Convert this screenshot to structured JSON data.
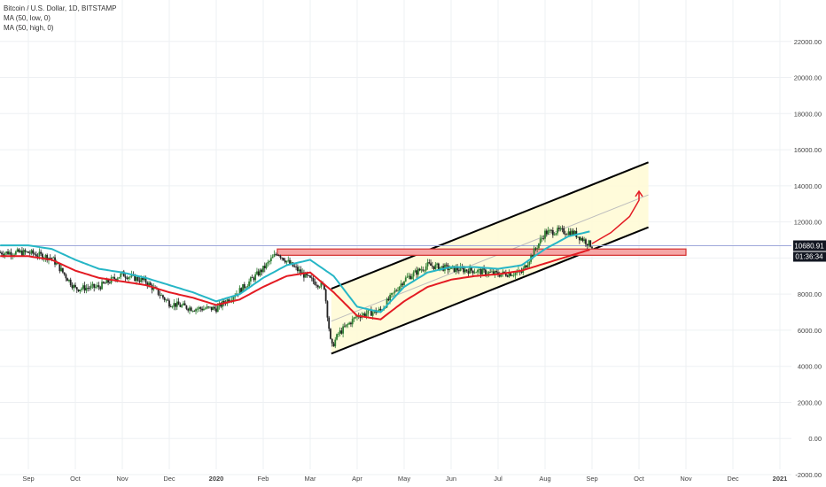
{
  "legend": {
    "symbol": "Bitcoin / U.S. Dollar, 1D, BITSTAMP",
    "ma_low": "MA (50, low, 0)",
    "ma_high": "MA (50, high, 0)"
  },
  "price_tag": {
    "price": "10680.91",
    "countdown": "01:36:34",
    "color": "#26a69a"
  },
  "colors": {
    "ma_low": "#e31b23",
    "ma_high": "#26b6c6",
    "channel_fill": "#fffbd6",
    "channel_line": "#000000",
    "resistance_fill": "#f5a6a6",
    "resistance_border": "#d32f2f",
    "arrow": "#e31b23",
    "up_candle": "#2e7d32",
    "down_candle": "#222222"
  },
  "chart_data": {
    "type": "candlestick",
    "title": "Bitcoin / U.S. Dollar, 1D, BITSTAMP",
    "ylim": [
      -2000,
      24000
    ],
    "yticks": [
      22000,
      20000,
      18000,
      16000,
      14000,
      12000,
      10000,
      8000,
      6000,
      4000,
      2000,
      0,
      -2000
    ],
    "ytick_labels": [
      "22000.00",
      "20000.00",
      "18000.00",
      "16000.00",
      "14000.00",
      "12000.00",
      "10000.00",
      "8000.00",
      "6000.00",
      "4000.00",
      "2000.00",
      "0.00",
      "-2000.00"
    ],
    "x_labels": [
      "Sep",
      "Oct",
      "Nov",
      "Dec",
      "2020",
      "Feb",
      "Mar",
      "Apr",
      "May",
      "Jun",
      "Jul",
      "Aug",
      "Sep",
      "Oct",
      "Nov",
      "Dec",
      "2021"
    ],
    "x_label_months": [
      0,
      1,
      2,
      3,
      4,
      5,
      6,
      7,
      8,
      9,
      10,
      11,
      12,
      13,
      14,
      15,
      16
    ],
    "month_axis_start": "2019-08-17",
    "close_monthly": {
      "months": [
        0,
        0.5,
        1,
        1.5,
        2,
        2.5,
        3,
        3.5,
        4,
        4.5,
        5,
        5.3,
        5.6,
        6,
        6.3,
        6.45,
        6.6,
        7,
        7.5,
        8,
        8.5,
        9,
        9.5,
        10,
        10.5,
        11,
        11.3,
        11.6,
        12
      ],
      "values": [
        10300,
        10000,
        8300,
        8400,
        9100,
        8700,
        7500,
        7200,
        7200,
        8200,
        9400,
        10300,
        9600,
        8800,
        8400,
        5000,
        5800,
        6800,
        7100,
        8800,
        9600,
        9400,
        9300,
        9100,
        9200,
        11400,
        11500,
        11400,
        10680
      ]
    },
    "ma_50_low": {
      "months": [
        0,
        0.5,
        1,
        1.5,
        2,
        2.5,
        3,
        3.5,
        4,
        4.5,
        5,
        5.5,
        6,
        6.5,
        7,
        7.5,
        8,
        8.5,
        9,
        9.5,
        10,
        10.5,
        11,
        11.5,
        12
      ],
      "values": [
        10100,
        9900,
        9300,
        8900,
        8700,
        8500,
        8100,
        7800,
        7400,
        7700,
        8400,
        9000,
        9200,
        8100,
        6800,
        6600,
        7600,
        8400,
        8800,
        9000,
        9100,
        9300,
        9700,
        10100,
        10500
      ]
    },
    "ma_50_high": {
      "months": [
        0,
        0.5,
        1,
        1.5,
        2,
        2.5,
        3,
        3.5,
        4,
        4.5,
        5,
        5.5,
        6,
        6.5,
        7,
        7.5,
        8,
        8.5,
        9,
        9.5,
        10,
        10.5,
        11,
        11.5,
        12
      ],
      "values": [
        10700,
        10500,
        9900,
        9400,
        9200,
        8900,
        8500,
        8100,
        7600,
        8000,
        8900,
        9600,
        9900,
        9000,
        7300,
        7000,
        8400,
        9200,
        9500,
        9500,
        9400,
        9600,
        10500,
        11200,
        11500
      ]
    },
    "channel": {
      "upper": {
        "from": [
          6.45,
          8300
        ],
        "to": [
          13.2,
          15300
        ]
      },
      "lower": {
        "from": [
          6.45,
          4700
        ],
        "to": [
          13.2,
          11700
        ]
      },
      "mid": {
        "from": [
          6.45,
          6500
        ],
        "to": [
          13.2,
          13500
        ]
      }
    },
    "resistance_zone": {
      "from_month": 5.3,
      "to_month": 14.0,
      "low": 10150,
      "high": 10500
    },
    "horizontal_line": {
      "value": 10680.91
    },
    "projection_arrow": {
      "months": [
        12.0,
        12.4,
        12.8,
        13.0,
        13.0
      ],
      "values": [
        10800,
        11400,
        12300,
        13200,
        13700
      ]
    }
  }
}
